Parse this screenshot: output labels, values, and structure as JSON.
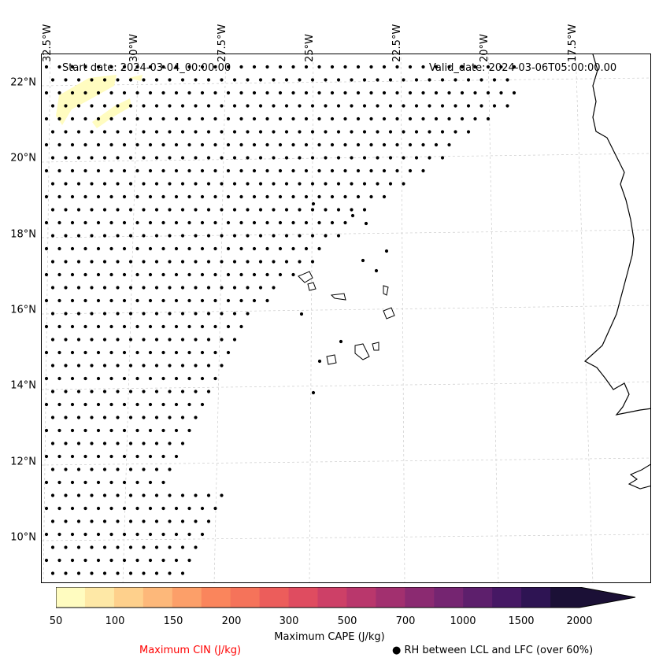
{
  "map": {
    "lon_labels": [
      "32.5°W",
      "30°W",
      "27.5°W",
      "25°W",
      "22.5°W",
      "20°W",
      "17.5°W"
    ],
    "lat_labels": [
      "22°N",
      "20°N",
      "18°N",
      "16°N",
      "14°N",
      "12°N",
      "10°N"
    ],
    "start_date": "Start date: 2024-03-04_00:00:00",
    "valid_date": "Valid_date: 2024-03-06T05:00:00.00",
    "coast_color": "#000000",
    "grid_color": "#cccccc",
    "rh_marker_color": "#000000"
  },
  "colorbar": {
    "title": "Maximum CAPE (J/kg)",
    "tick_labels": [
      "50",
      "100",
      "150",
      "200",
      "300",
      "500",
      "700",
      "1000",
      "1500",
      "2000"
    ],
    "colors": [
      "#fffcc0",
      "#fee8a6",
      "#fed08c",
      "#fdb87a",
      "#fc9f69",
      "#fa855c",
      "#f5735a",
      "#ec5d5b",
      "#df4c60",
      "#cd4067",
      "#b9376c",
      "#a2306f",
      "#8b2a71",
      "#752571",
      "#5d1f6c",
      "#461864",
      "#2e1453",
      "#1b1036"
    ],
    "extend": "max"
  },
  "legend": {
    "cin_label": "Maximum CIN (J/kg)",
    "cin_color": "#ff0000",
    "rh_label": "● RH between LCL and LFC (over 60%)"
  }
}
